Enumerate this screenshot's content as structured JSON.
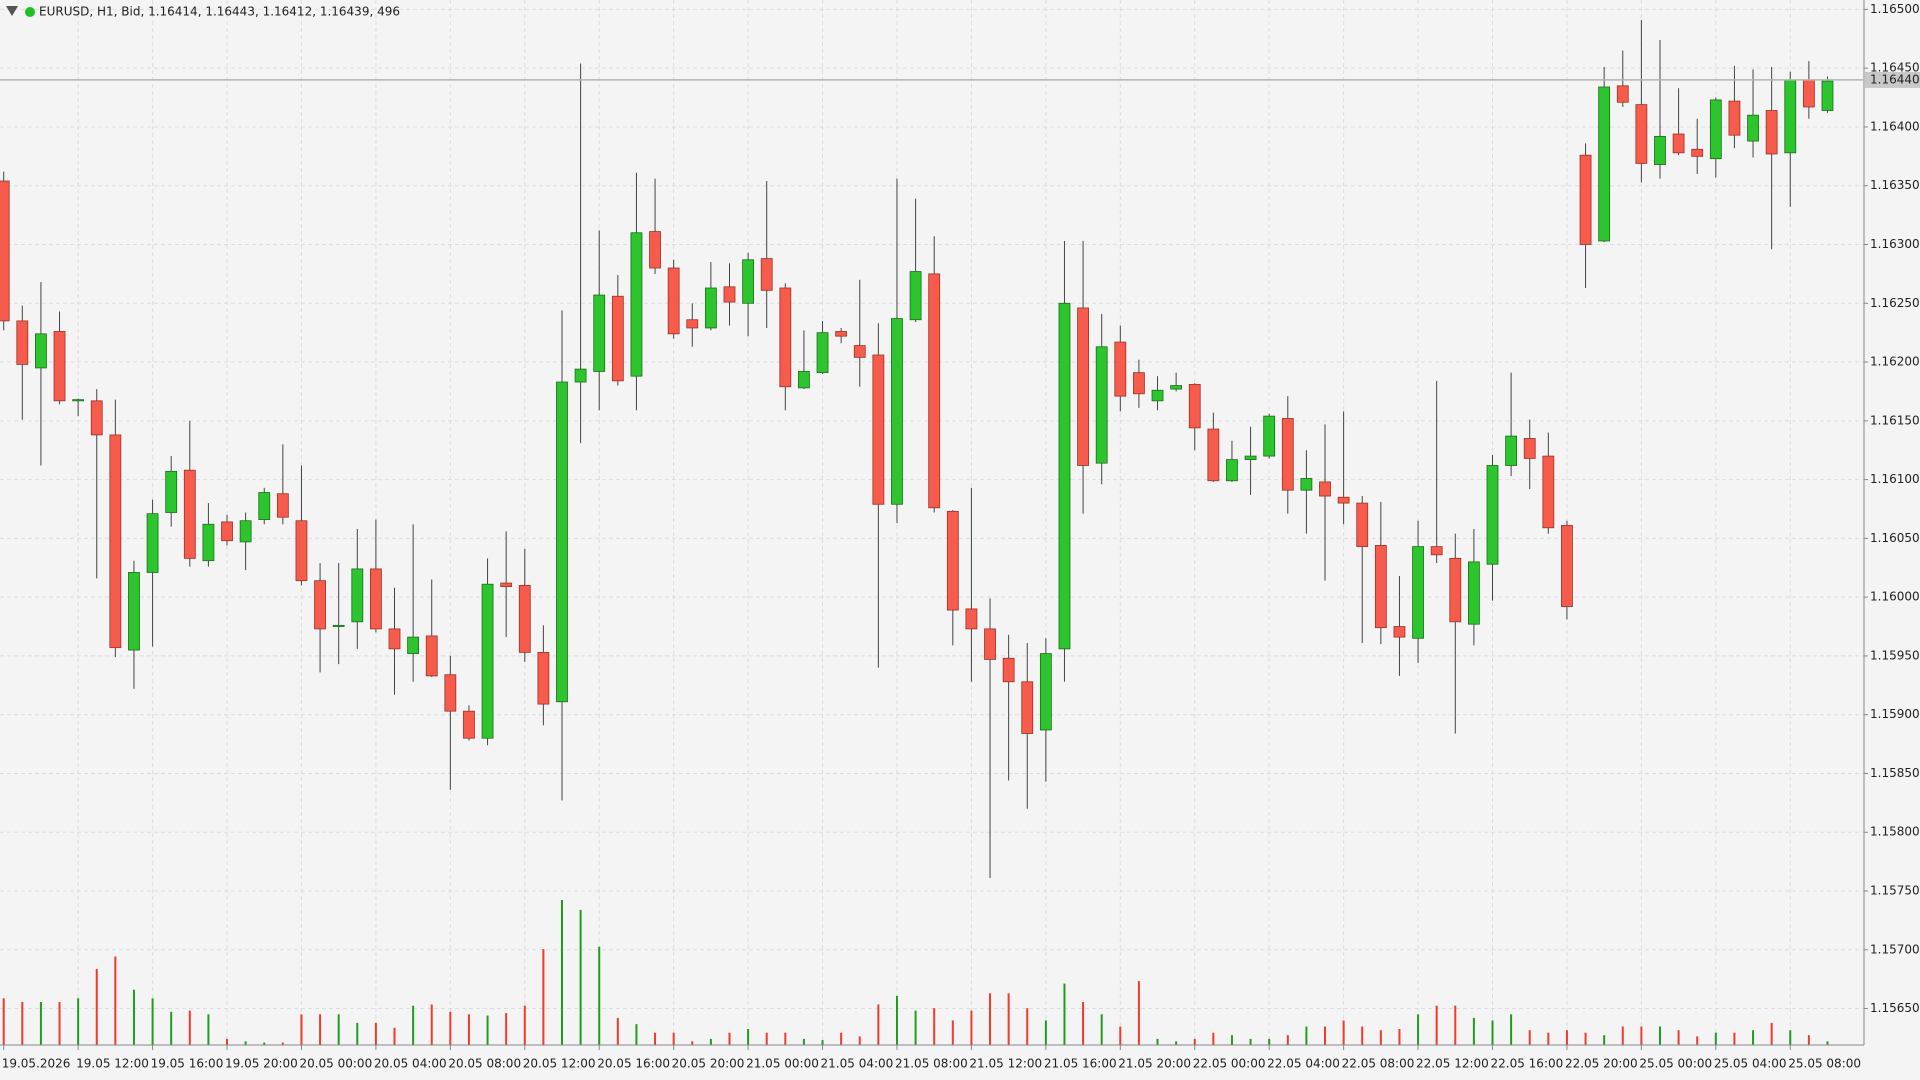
{
  "chart_data": {
    "type": "candlestick",
    "title": "EURUSD, H1, Bid, 1.16414, 1.16443, 1.16412, 1.16439, 496",
    "categories": [
      "19.05.2026",
      null,
      null,
      null,
      "19.05 12:00",
      null,
      null,
      null,
      "19.05 16:00",
      null,
      null,
      null,
      "19.05 20:00",
      null,
      null,
      null,
      "20.05 00:00",
      null,
      null,
      null,
      "20.05 04:00",
      null,
      null,
      null,
      "20.05 08:00",
      null,
      null,
      null,
      "20.05 12:00",
      null,
      null,
      null,
      "20.05 16:00",
      null,
      null,
      null,
      "20.05 20:00",
      null,
      null,
      null,
      "21.05 00:00",
      null,
      null,
      null,
      "21.05 04:00",
      null,
      null,
      null,
      "21.05 08:00",
      null,
      null,
      null,
      "21.05 12:00",
      null,
      null,
      null,
      "21.05 16:00",
      null,
      null,
      null,
      "21.05 20:00",
      null,
      null,
      null,
      "22.05 00:00",
      null,
      null,
      null,
      "22.05 04:00",
      null,
      null,
      null,
      "22.05 08:00",
      null,
      null,
      null,
      "22.05 12:00",
      null,
      null,
      null,
      "22.05 16:00",
      null,
      null,
      null,
      "22.05 20:00",
      null,
      null,
      null,
      "25.05 00:00",
      null,
      null,
      null,
      "25.05 04:00",
      null,
      null,
      null,
      "25.05 08:00",
      null,
      null
    ],
    "open": [
      1.16354,
      1.16235,
      1.16195,
      1.16226,
      1.16167,
      1.16167,
      1.16138,
      1.15955,
      1.16021,
      1.16072,
      1.16108,
      1.16031,
      1.16064,
      1.16047,
      1.16066,
      1.16088,
      1.16065,
      1.16014,
      1.15975,
      1.15979,
      1.16024,
      1.15973,
      1.15952,
      1.15967,
      1.15934,
      1.15903,
      1.1588,
      1.16012,
      1.1601,
      1.15953,
      1.15911,
      1.16183,
      1.16192,
      1.16256,
      1.16188,
      1.16311,
      1.1628,
      1.16236,
      1.16229,
      1.16264,
      1.1625,
      1.16288,
      1.16263,
      1.16178,
      1.16191,
      1.16226,
      1.16214,
      1.16206,
      1.16079,
      1.16236,
      1.16275,
      1.16073,
      1.1599,
      1.15973,
      1.15948,
      1.15928,
      1.15887,
      1.15956,
      1.16246,
      1.16114,
      1.16217,
      1.16191,
      1.16167,
      1.16177,
      1.16181,
      1.16143,
      1.16099,
      1.16117,
      1.1612,
      1.16152,
      1.16091,
      1.16098,
      1.16085,
      1.1608,
      1.16044,
      1.15975,
      1.15965,
      1.16043,
      1.16033,
      1.15977,
      1.16028,
      1.16112,
      1.16135,
      1.1612,
      1.16061,
      1.16376,
      1.16303,
      1.16435,
      1.16419,
      1.16368,
      1.16394,
      1.16381,
      1.16373,
      1.16422,
      1.16388,
      1.16414,
      1.16378,
      1.1644,
      1.16414
    ],
    "high": [
      1.16362,
      1.16248,
      1.16268,
      1.16243,
      1.16169,
      1.16177,
      1.16168,
      1.16031,
      1.16083,
      1.1612,
      1.1615,
      1.1608,
      1.1607,
      1.16072,
      1.16093,
      1.1613,
      1.16112,
      1.16029,
      1.16029,
      1.16058,
      1.16066,
      1.16008,
      1.16062,
      1.16015,
      1.1595,
      1.15908,
      1.16033,
      1.16056,
      1.16041,
      1.15976,
      1.16244,
      1.16454,
      1.16312,
      1.16274,
      1.16361,
      1.16356,
      1.16287,
      1.1625,
      1.16285,
      1.16284,
      1.16293,
      1.16354,
      1.16267,
      1.16227,
      1.16235,
      1.16229,
      1.1627,
      1.16233,
      1.16356,
      1.16339,
      1.16307,
      1.16074,
      1.16093,
      1.15999,
      1.15968,
      1.15961,
      1.15965,
      1.16303,
      1.16303,
      1.16241,
      1.16231,
      1.16202,
      1.16188,
      1.16191,
      1.16182,
      1.16157,
      1.16133,
      1.16145,
      1.16156,
      1.16171,
      1.16125,
      1.16147,
      1.16158,
      1.16086,
      1.16081,
      1.16018,
      1.16065,
      1.16184,
      1.16054,
      1.16058,
      1.16121,
      1.16191,
      1.16151,
      1.1614,
      1.16065,
      1.16386,
      1.16451,
      1.16465,
      1.16491,
      1.16474,
      1.16433,
      1.16407,
      1.16425,
      1.16452,
      1.16449,
      1.16451,
      1.16447,
      1.16456,
      1.16443
    ],
    "low": [
      1.16227,
      1.16151,
      1.16112,
      1.16164,
      1.16154,
      1.16016,
      1.15949,
      1.15922,
      1.15958,
      1.1606,
      1.16026,
      1.16026,
      1.16044,
      1.16023,
      1.16062,
      1.16062,
      1.1601,
      1.15936,
      1.15943,
      1.15956,
      1.1597,
      1.15917,
      1.15928,
      1.15932,
      1.15836,
      1.15878,
      1.15874,
      1.15966,
      1.15945,
      1.15891,
      1.15827,
      1.16131,
      1.16159,
      1.1618,
      1.16159,
      1.16275,
      1.1622,
      1.16213,
      1.16227,
      1.16231,
      1.16222,
      1.16229,
      1.16159,
      1.16177,
      1.1619,
      1.16216,
      1.16179,
      1.1594,
      1.16063,
      1.16234,
      1.16072,
      1.15959,
      1.15928,
      1.15761,
      1.15844,
      1.1582,
      1.15843,
      1.15928,
      1.16071,
      1.16096,
      1.16158,
      1.16161,
      1.16159,
      1.16175,
      1.16125,
      1.16098,
      1.16098,
      1.16087,
      1.16118,
      1.16071,
      1.16054,
      1.16014,
      1.16062,
      1.15961,
      1.1596,
      1.15933,
      1.15944,
      1.16029,
      1.15884,
      1.15959,
      1.15997,
      1.16103,
      1.16092,
      1.16054,
      1.15981,
      1.16263,
      1.16302,
      1.16417,
      1.16353,
      1.16356,
      1.16376,
      1.1636,
      1.16357,
      1.16382,
      1.16374,
      1.16296,
      1.16332,
      1.16407,
      1.16412
    ],
    "close": [
      1.16235,
      1.16198,
      1.16224,
      1.16167,
      1.16168,
      1.16138,
      1.15957,
      1.16021,
      1.16071,
      1.16107,
      1.16033,
      1.16062,
      1.16048,
      1.16065,
      1.16089,
      1.16068,
      1.16014,
      1.15973,
      1.15976,
      1.16024,
      1.15973,
      1.15956,
      1.15966,
      1.15933,
      1.15903,
      1.1588,
      1.16011,
      1.16009,
      1.15953,
      1.15909,
      1.16183,
      1.16194,
      1.16257,
      1.16184,
      1.1631,
      1.1628,
      1.16224,
      1.16229,
      1.16263,
      1.16251,
      1.16287,
      1.16261,
      1.16179,
      1.16192,
      1.16225,
      1.16222,
      1.16204,
      1.16079,
      1.16237,
      1.16277,
      1.16076,
      1.15989,
      1.15973,
      1.15947,
      1.15928,
      1.15884,
      1.15952,
      1.1625,
      1.16112,
      1.16213,
      1.16171,
      1.16173,
      1.16176,
      1.1618,
      1.16144,
      1.16099,
      1.16117,
      1.1612,
      1.16154,
      1.16091,
      1.16101,
      1.16086,
      1.1608,
      1.16043,
      1.15974,
      1.15966,
      1.16043,
      1.16036,
      1.15979,
      1.1603,
      1.16112,
      1.16137,
      1.16118,
      1.16059,
      1.15992,
      1.163,
      1.16434,
      1.16421,
      1.16369,
      1.16392,
      1.16378,
      1.16375,
      1.16423,
      1.16393,
      1.1641,
      1.16377,
      1.1644,
      1.16417,
      1.16439
    ],
    "volume": [
      38,
      35,
      35,
      35,
      38,
      62,
      72,
      45,
      38,
      27,
      28,
      25,
      5,
      3,
      2,
      2,
      25,
      25,
      25,
      18,
      18,
      14,
      32,
      33,
      27,
      25,
      24,
      26,
      32,
      78,
      118,
      110,
      80,
      22,
      17,
      10,
      10,
      3,
      5,
      10,
      13,
      10,
      10,
      5,
      4,
      10,
      7,
      33,
      40,
      28,
      30,
      20,
      28,
      42,
      42,
      30,
      20,
      50,
      35,
      25,
      15,
      52,
      5,
      3,
      5,
      10,
      8,
      5,
      5,
      8,
      15,
      15,
      20,
      15,
      12,
      13,
      25,
      32,
      32,
      22,
      20,
      25,
      12,
      10,
      12,
      10,
      8,
      15,
      15,
      15,
      12,
      7,
      10,
      10,
      12,
      18,
      12,
      8,
      3
    ],
    "up_color": "#2dc52d",
    "down_color": "#f75b4b",
    "ylim": [
      1.15619,
      1.16508
    ],
    "yticks": [
      {
        "value": 1.1565,
        "label": "1.15650"
      },
      {
        "value": 1.157,
        "label": "1.15700"
      },
      {
        "value": 1.1575,
        "label": "1.15750"
      },
      {
        "value": 1.158,
        "label": "1.15800"
      },
      {
        "value": 1.1585,
        "label": "1.15850"
      },
      {
        "value": 1.159,
        "label": "1.15900"
      },
      {
        "value": 1.1595,
        "label": "1.15950"
      },
      {
        "value": 1.16,
        "label": "1.16000"
      },
      {
        "value": 1.1605,
        "label": "1.16050"
      },
      {
        "value": 1.161,
        "label": "1.16100"
      },
      {
        "value": 1.1615,
        "label": "1.16150"
      },
      {
        "value": 1.162,
        "label": "1.16200"
      },
      {
        "value": 1.1625,
        "label": "1.16250"
      },
      {
        "value": 1.163,
        "label": "1.16300"
      },
      {
        "value": 1.1635,
        "label": "1.16350"
      },
      {
        "value": 1.164,
        "label": "1.16400"
      },
      {
        "value": 1.1645,
        "label": "1.16450"
      },
      {
        "value": 1.165,
        "label": "1.16500"
      }
    ],
    "price_line": {
      "value": 1.1644,
      "label": "1.16440"
    },
    "grid": true
  }
}
